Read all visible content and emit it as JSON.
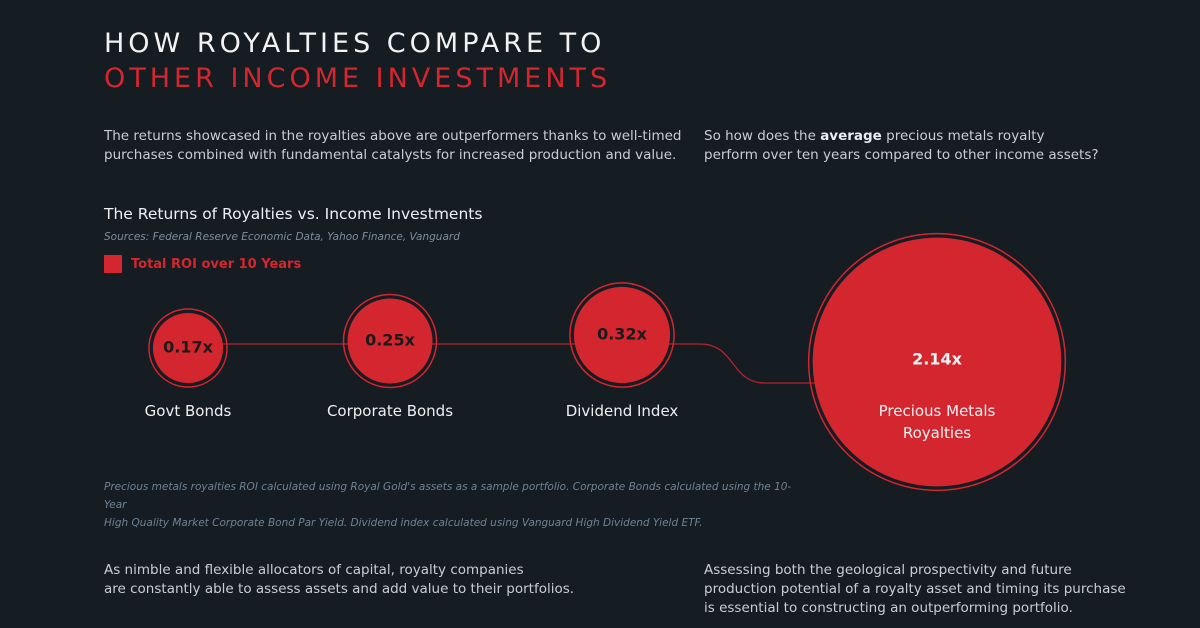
{
  "header": {
    "title_line1": "HOW ROYALTIES COMPARE TO",
    "title_line2": "OTHER INCOME INVESTMENTS"
  },
  "intro_left": [
    "The returns showcased in the royalties above are outperformers thanks to well-timed",
    "purchases combined with fundamental catalysts for increased production and value."
  ],
  "intro_right": {
    "before": "So how does the",
    "emphasis": "average",
    "after": "precious metals royalty",
    "line2": "perform over ten years compared to other income assets?"
  },
  "chart_data": {
    "type": "bubble",
    "title": "The Returns of Royalties vs. Income Investments",
    "source": "Sources: Federal Reserve Economic Data, Yahoo Finance, Vanguard",
    "categories": [
      "Govt Bonds",
      "Corporate Bonds",
      "Dividend Index",
      "Precious Metals Royalties"
    ],
    "series": [
      {
        "name": "Total ROI over 10 Years",
        "color": "#d3262e",
        "values": [
          0.17,
          0.25,
          0.32,
          2.14
        ],
        "value_labels": [
          "0.17x",
          "0.25x",
          "0.32x",
          "2.14x"
        ]
      }
    ],
    "footnote": [
      "Precious metals royalties ROI calculated using Royal Gold's assets as a sample portfolio. Corporate Bonds calculated using the 10-Year",
      "High Quality Market Corporate Bond Par Yield. Dividend index calculated using Vanguard High Dividend Yield ETF."
    ]
  },
  "outro_left": [
    "As nimble and flexible allocators of capital, royalty companies",
    "are constantly able to assess assets and add value to their portfolios."
  ],
  "outro_right": [
    "Assessing both the geological prospectivity and future",
    "production potential of a royalty asset and timing its purchase",
    "is essential to constructing an outperforming portfolio."
  ]
}
